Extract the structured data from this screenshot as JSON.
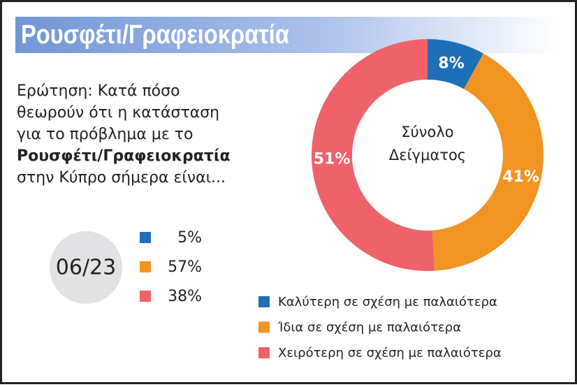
{
  "chart_data": {
    "type": "pie",
    "title": "Ρουσφέτι/Γραφειοκρατία",
    "question": [
      "Ερώτηση: Κατά πόσο",
      "θεωρούν ότι η κατάσταση",
      "για το πρόβλημα με το",
      "Ρουσφέτι/Γραφειοκρατία",
      "στην Κύπρο σήμερα είναι..."
    ],
    "center_label": [
      "Σύνολο",
      "Δείγματος"
    ],
    "categories": [
      "Καλύτερη σε σχέση με παλαιότερα",
      "Ίδια σε σχέση με παλαιότερα",
      "Χειρότερη σε σχέση με παλαιότερα"
    ],
    "values": [
      8,
      41,
      51
    ],
    "value_labels": [
      "8%",
      "41%",
      "51%"
    ],
    "colors": [
      "#1f6fb8",
      "#f29422",
      "#f0626a"
    ],
    "comparison": {
      "label": "06/23",
      "values": [
        5,
        57,
        38
      ],
      "value_labels": [
        "5%",
        "57%",
        "38%"
      ]
    }
  }
}
